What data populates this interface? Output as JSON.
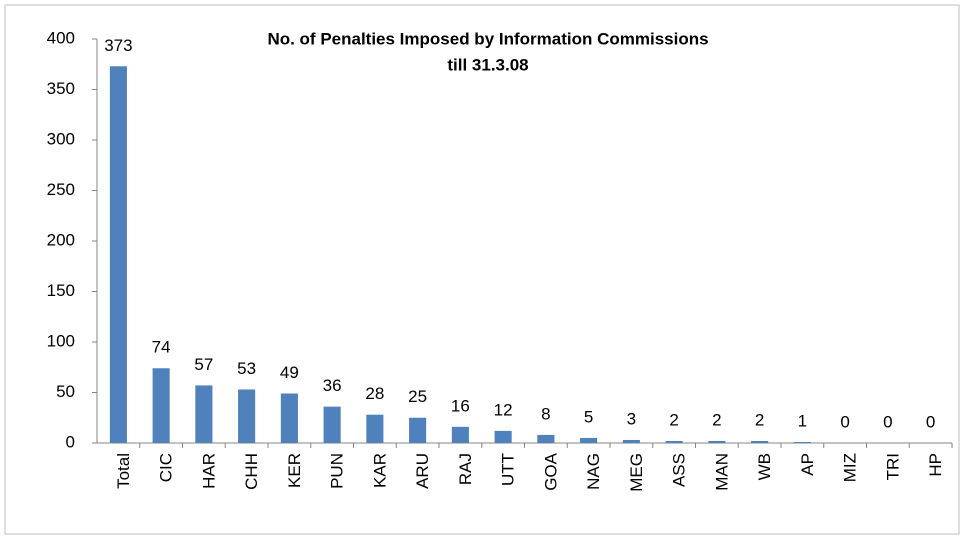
{
  "chart_data": {
    "type": "bar",
    "title": [
      "No. of Penalties Imposed by Information Commissions",
      "till 31.3.08"
    ],
    "categories": [
      "Total",
      "CIC",
      "HAR",
      "CHH",
      "KER",
      "PUN",
      "KAR",
      "ARU",
      "RAJ",
      "UTT",
      "GOA",
      "NAG",
      "MEG",
      "ASS",
      "MAN",
      "WB",
      "AP",
      "MIZ",
      "TRI",
      "HP"
    ],
    "values": [
      373,
      74,
      57,
      53,
      49,
      36,
      28,
      25,
      16,
      12,
      8,
      5,
      3,
      2,
      2,
      2,
      1,
      0,
      0,
      0
    ],
    "color": "#4f81bd",
    "ylim": [
      0,
      400
    ],
    "yticks": [
      0,
      50,
      100,
      150,
      200,
      250,
      300,
      350,
      400
    ],
    "grid": false
  }
}
